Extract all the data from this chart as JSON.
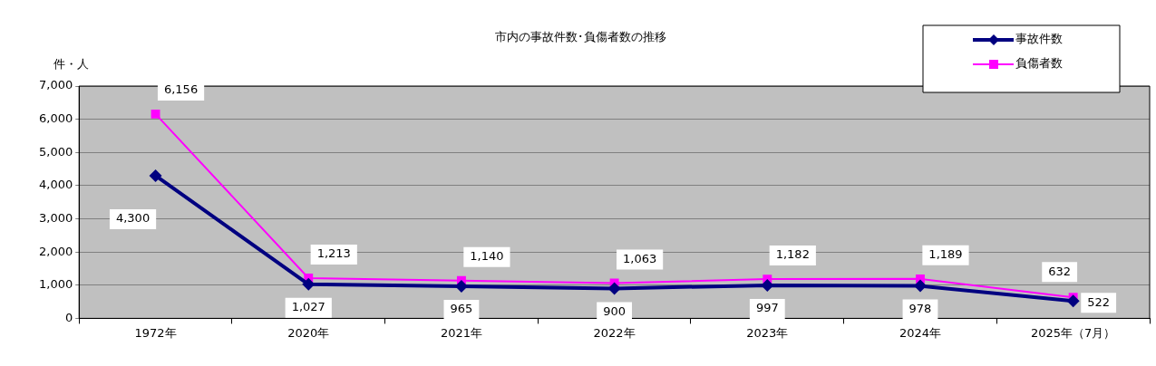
{
  "chart_data": {
    "type": "line",
    "title": "市内の事故件数･負傷者数の推移",
    "ylabel": "件・人",
    "categories": [
      "1972年",
      "2020年",
      "2021年",
      "2022年",
      "2023年",
      "2024年",
      "2025年（7月）"
    ],
    "series": [
      {
        "name": "事故件数",
        "color": "#000080",
        "marker": "diamond",
        "values": [
          4300,
          1027,
          965,
          900,
          997,
          978,
          522
        ],
        "value_labels": [
          "4,300",
          "1,027",
          "965",
          "900",
          "997",
          "978",
          "522"
        ]
      },
      {
        "name": "負傷者数",
        "color": "#ff00ff",
        "marker": "square",
        "values": [
          6156,
          1213,
          1140,
          1063,
          1182,
          1189,
          632
        ],
        "value_labels": [
          "6,156",
          "1,213",
          "1,140",
          "1,063",
          "1,182",
          "1,189",
          "632"
        ]
      }
    ],
    "ylim": [
      0,
      7000
    ],
    "yticks": [
      0,
      {
        "value": 1000,
        "label": "1,000"
      },
      {
        "value": 2000,
        "label": "2,000"
      },
      {
        "value": 3000,
        "label": "3,000"
      },
      {
        "value": 4000,
        "label": "4,000"
      },
      {
        "value": 5000,
        "label": "5,000"
      },
      {
        "value": 6000,
        "label": "6,000"
      },
      {
        "value": 7000,
        "label": "7,000"
      }
    ],
    "grid": "y",
    "legend": "top right"
  }
}
